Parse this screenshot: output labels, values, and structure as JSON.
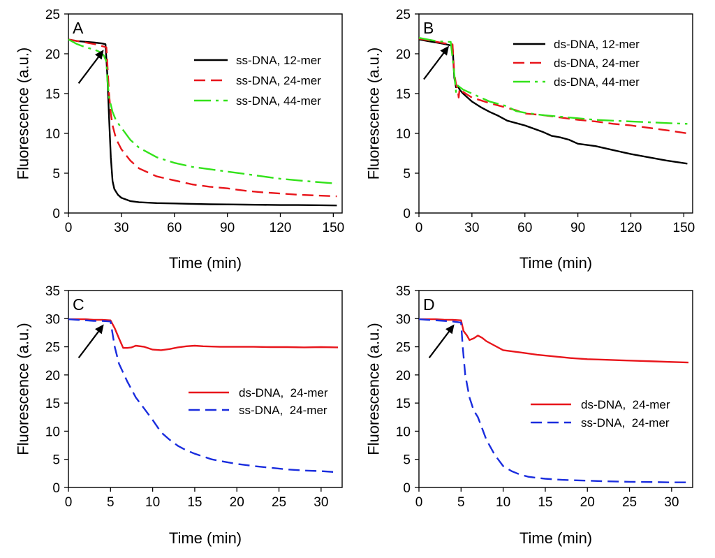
{
  "colors": {
    "black": "#000000",
    "red": "#e8151b",
    "green": "#33e21a",
    "blue": "#1a2dde"
  },
  "arrow": {
    "name": "arrow-icon"
  },
  "chart_data": [
    {
      "id": "A",
      "type": "line",
      "panel_label": "A",
      "xlabel": "Time (min)",
      "ylabel": "Fluorescence (a.u.)",
      "xlim": [
        0,
        155
      ],
      "ylim": [
        0,
        25
      ],
      "xticks": [
        0,
        30,
        60,
        90,
        120,
        150
      ],
      "xtick_labels": [
        "0",
        "30",
        "60",
        "90",
        "120",
        "150"
      ],
      "yticks": [
        0,
        5,
        10,
        15,
        20,
        25
      ],
      "ytick_labels": [
        "0",
        "5",
        "10",
        "15",
        "20",
        "25"
      ],
      "grid": false,
      "legend_position": "upper-right",
      "arrow_at": {
        "x": 20,
        "y": 20.5
      },
      "series": [
        {
          "name": "ss-DNA, 12-mer",
          "color": "#000000",
          "dash": "solid",
          "x": [
            0,
            5,
            10,
            15,
            19,
            21,
            22,
            23,
            24,
            25,
            26,
            28,
            30,
            35,
            40,
            50,
            60,
            70,
            80,
            90,
            100,
            110,
            120,
            130,
            140,
            152
          ],
          "y": [
            21.8,
            21.6,
            21.5,
            21.4,
            21.3,
            21.2,
            17.5,
            12.0,
            7.0,
            4.0,
            3.0,
            2.3,
            1.9,
            1.5,
            1.35,
            1.25,
            1.2,
            1.15,
            1.1,
            1.08,
            1.05,
            1.03,
            1.0,
            1.0,
            0.98,
            0.95
          ]
        },
        {
          "name": "ss-DNA, 24-mer",
          "color": "#e8151b",
          "dash": "long",
          "x": [
            0,
            5,
            10,
            15,
            20,
            21.5,
            22,
            23,
            24,
            25,
            27,
            30,
            35,
            40,
            50,
            60,
            70,
            80,
            90,
            100,
            110,
            120,
            130,
            140,
            152
          ],
          "y": [
            21.8,
            21.6,
            21.4,
            21.2,
            20.9,
            20.8,
            19.0,
            15.0,
            12.5,
            11.0,
            9.3,
            8.0,
            6.6,
            5.6,
            4.6,
            4.1,
            3.6,
            3.3,
            3.1,
            2.8,
            2.6,
            2.45,
            2.3,
            2.2,
            2.1
          ]
        },
        {
          "name": "ss-DNA, 44-mer",
          "color": "#33e21a",
          "dash": "dashdot",
          "x": [
            0,
            5,
            10,
            15,
            18,
            20,
            21.5,
            22,
            23,
            25,
            27,
            30,
            35,
            40,
            50,
            60,
            70,
            80,
            90,
            100,
            110,
            120,
            130,
            140,
            152
          ],
          "y": [
            21.8,
            21.2,
            20.8,
            20.5,
            20.2,
            19.8,
            19.0,
            17.0,
            14.5,
            12.7,
            11.6,
            10.7,
            9.2,
            8.2,
            7.0,
            6.3,
            5.8,
            5.5,
            5.2,
            4.9,
            4.6,
            4.3,
            4.1,
            3.9,
            3.7
          ]
        }
      ]
    },
    {
      "id": "B",
      "type": "line",
      "panel_label": "B",
      "xlabel": "Time (min)",
      "ylabel": "Fluorescence (a.u.)",
      "xlim": [
        0,
        155
      ],
      "ylim": [
        0,
        25
      ],
      "xticks": [
        0,
        30,
        60,
        90,
        120,
        150
      ],
      "xtick_labels": [
        "0",
        "30",
        "60",
        "90",
        "120",
        "150"
      ],
      "yticks": [
        0,
        5,
        10,
        15,
        20,
        25
      ],
      "ytick_labels": [
        "0",
        "5",
        "10",
        "15",
        "20",
        "25"
      ],
      "grid": false,
      "legend_position": "upper-right",
      "arrow_at": {
        "x": 17,
        "y": 21.0
      },
      "series": [
        {
          "name": "ds-DNA, 12-mer",
          "color": "#000000",
          "dash": "solid",
          "x": [
            0,
            5,
            10,
            15,
            19,
            20,
            21,
            22,
            23,
            25,
            30,
            35,
            40,
            45,
            50,
            60,
            70,
            75,
            80,
            85,
            90,
            100,
            110,
            120,
            130,
            140,
            152
          ],
          "y": [
            21.8,
            21.6,
            21.4,
            21.2,
            21.0,
            17.0,
            15.8,
            16.0,
            15.5,
            15.0,
            14.0,
            13.3,
            12.7,
            12.2,
            11.6,
            11.0,
            10.2,
            9.7,
            9.5,
            9.2,
            8.7,
            8.4,
            7.9,
            7.4,
            7.0,
            6.6,
            6.2
          ]
        },
        {
          "name": "ds-DNA, 24-mer",
          "color": "#e8151b",
          "dash": "long",
          "x": [
            0,
            5,
            10,
            15,
            19,
            20,
            21,
            22,
            22.5,
            23,
            25,
            30,
            40,
            50,
            55,
            60,
            70,
            80,
            90,
            100,
            110,
            120,
            130,
            140,
            152
          ],
          "y": [
            21.9,
            21.7,
            21.5,
            21.3,
            21.2,
            17.5,
            16.2,
            15.5,
            14.5,
            15.6,
            15.2,
            14.5,
            13.8,
            13.2,
            12.9,
            12.5,
            12.3,
            12.0,
            11.7,
            11.5,
            11.2,
            11.0,
            10.7,
            10.4,
            10.0
          ]
        },
        {
          "name": "ds-DNA, 44-mer",
          "color": "#33e21a",
          "dash": "dashdot",
          "x": [
            0,
            5,
            10,
            15,
            18,
            19,
            20,
            21,
            22,
            25,
            30,
            40,
            50,
            55,
            60,
            70,
            80,
            90,
            100,
            110,
            120,
            130,
            140,
            152
          ],
          "y": [
            22.0,
            21.8,
            21.6,
            21.5,
            21.5,
            19.5,
            17.5,
            15.2,
            16.0,
            15.5,
            15.0,
            14.0,
            13.4,
            12.8,
            12.6,
            12.3,
            12.1,
            11.9,
            11.7,
            11.6,
            11.5,
            11.4,
            11.3,
            11.2
          ]
        }
      ]
    },
    {
      "id": "C",
      "type": "line",
      "panel_label": "C",
      "xlabel": "Time (min)",
      "ylabel": "Fluorescence (a.u.)",
      "xlim": [
        0,
        32.5
      ],
      "ylim": [
        0,
        35
      ],
      "xticks": [
        0,
        5,
        10,
        15,
        20,
        25,
        30
      ],
      "xtick_labels": [
        "0",
        "5",
        "10",
        "15",
        "20",
        "25",
        "30"
      ],
      "yticks": [
        0,
        5,
        10,
        15,
        20,
        25,
        30,
        35
      ],
      "ytick_labels": [
        "0",
        "5",
        "10",
        "15",
        "20",
        "25",
        "30",
        "35"
      ],
      "grid": false,
      "legend_position": "center-right",
      "arrow_at": {
        "x": 4.2,
        "y": 29.0
      },
      "series": [
        {
          "name": "ds-DNA,  24-mer",
          "color": "#e8151b",
          "dash": "solid",
          "x": [
            0,
            1,
            2,
            3,
            4,
            5,
            5.5,
            6,
            6.5,
            7,
            7.5,
            8,
            9,
            10,
            11,
            12,
            13,
            14,
            15,
            16,
            18,
            20,
            22,
            24,
            26,
            28,
            30,
            32
          ],
          "y": [
            29.9,
            29.9,
            29.9,
            29.8,
            29.8,
            29.7,
            28.3,
            26.5,
            24.8,
            24.8,
            24.9,
            25.2,
            25.0,
            24.5,
            24.4,
            24.6,
            24.9,
            25.1,
            25.2,
            25.1,
            25.0,
            25.0,
            25.0,
            24.95,
            24.95,
            24.9,
            24.95,
            24.9
          ]
        },
        {
          "name": "ss-DNA,  24-mer",
          "color": "#1a2dde",
          "dash": "long",
          "x": [
            0,
            1,
            2,
            3,
            4,
            5,
            5.5,
            6,
            7,
            8,
            9,
            10,
            11,
            12,
            13,
            14,
            15,
            16,
            17,
            18,
            20,
            22,
            24,
            26,
            28,
            30,
            32
          ],
          "y": [
            29.9,
            29.8,
            29.7,
            29.6,
            29.6,
            29.5,
            25.0,
            22.0,
            18.8,
            16.0,
            14.0,
            12.0,
            9.8,
            8.5,
            7.4,
            6.6,
            6.0,
            5.5,
            5.0,
            4.7,
            4.2,
            3.8,
            3.5,
            3.2,
            3.0,
            2.9,
            2.7
          ]
        }
      ]
    },
    {
      "id": "D",
      "type": "line",
      "panel_label": "D",
      "xlabel": "Time (min)",
      "ylabel": "Fluorescence (a.u.)",
      "xlim": [
        0,
        32.5
      ],
      "ylim": [
        0,
        35
      ],
      "xticks": [
        0,
        5,
        10,
        15,
        20,
        25,
        30
      ],
      "xtick_labels": [
        "0",
        "5",
        "10",
        "15",
        "20",
        "25",
        "30"
      ],
      "yticks": [
        0,
        5,
        10,
        15,
        20,
        25,
        30,
        35
      ],
      "ytick_labels": [
        "0",
        "5",
        "10",
        "15",
        "20",
        "25",
        "30",
        "35"
      ],
      "grid": false,
      "legend_position": "center-right",
      "arrow_at": {
        "x": 4.2,
        "y": 29.0
      },
      "series": [
        {
          "name": "ds-DNA,  24-mer",
          "color": "#e8151b",
          "dash": "solid",
          "x": [
            0,
            1,
            2,
            3,
            4,
            5,
            5.3,
            5.7,
            6,
            6.5,
            7,
            7.5,
            8,
            9,
            10,
            12,
            14,
            16,
            18,
            20,
            22,
            24,
            26,
            28,
            30,
            32
          ],
          "y": [
            29.9,
            29.9,
            29.9,
            29.8,
            29.8,
            29.7,
            27.8,
            27.0,
            26.2,
            26.5,
            27.0,
            26.6,
            26.0,
            25.2,
            24.4,
            24.0,
            23.6,
            23.3,
            23.0,
            22.8,
            22.7,
            22.6,
            22.5,
            22.4,
            22.3,
            22.2
          ]
        },
        {
          "name": "ss-DNA,  24-mer",
          "color": "#1a2dde",
          "dash": "long",
          "x": [
            0,
            1,
            2,
            3,
            4,
            5,
            5.2,
            5.5,
            6,
            6.5,
            7,
            7.5,
            8,
            9,
            10,
            11,
            12,
            13,
            14,
            15,
            17,
            20,
            22,
            25,
            28,
            30,
            32
          ],
          "y": [
            29.9,
            29.8,
            29.7,
            29.6,
            29.5,
            29.3,
            25.0,
            20.0,
            16.0,
            13.7,
            12.5,
            10.5,
            8.5,
            5.8,
            3.8,
            2.9,
            2.3,
            1.9,
            1.7,
            1.55,
            1.35,
            1.2,
            1.1,
            1.0,
            0.95,
            0.9,
            0.9
          ]
        }
      ]
    }
  ]
}
